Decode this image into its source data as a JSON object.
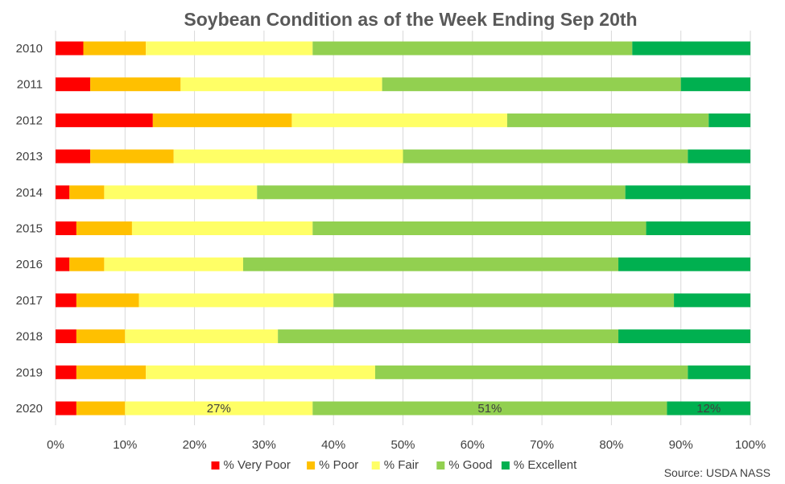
{
  "chart_data": {
    "type": "bar",
    "orientation": "horizontal",
    "stacked": "percent",
    "title": "Soybean Condition as of the Week Ending Sep 20th",
    "categories": [
      "2010",
      "2011",
      "2012",
      "2013",
      "2014",
      "2015",
      "2016",
      "2017",
      "2018",
      "2019",
      "2020"
    ],
    "series": [
      {
        "name": "% Very Poor",
        "color": "#ff0000",
        "values": [
          4,
          5,
          14,
          5,
          2,
          3,
          2,
          3,
          3,
          3,
          3
        ]
      },
      {
        "name": "% Poor",
        "color": "#ffc000",
        "values": [
          9,
          13,
          20,
          12,
          5,
          8,
          5,
          9,
          7,
          10,
          7
        ]
      },
      {
        "name": "% Fair",
        "color": "#ffff66",
        "values": [
          24,
          29,
          31,
          33,
          22,
          26,
          20,
          28,
          22,
          33,
          27
        ]
      },
      {
        "name": "% Good",
        "color": "#92d050",
        "values": [
          46,
          43,
          29,
          41,
          53,
          48,
          54,
          49,
          49,
          45,
          51
        ]
      },
      {
        "name": "% Excellent",
        "color": "#00b050",
        "values": [
          17,
          10,
          6,
          9,
          18,
          15,
          19,
          11,
          19,
          9,
          12
        ]
      }
    ],
    "data_labels": [
      {
        "category": "2020",
        "series": "% Fair",
        "text": "27%"
      },
      {
        "category": "2020",
        "series": "% Good",
        "text": "51%"
      },
      {
        "category": "2020",
        "series": "% Excellent",
        "text": "12%"
      }
    ],
    "x_tick_labels": [
      "0%",
      "10%",
      "20%",
      "30%",
      "40%",
      "50%",
      "60%",
      "70%",
      "80%",
      "90%",
      "100%"
    ],
    "xlim": [
      0,
      100
    ],
    "grid": true,
    "legend_position": "bottom",
    "source": "Source: USDA NASS"
  }
}
